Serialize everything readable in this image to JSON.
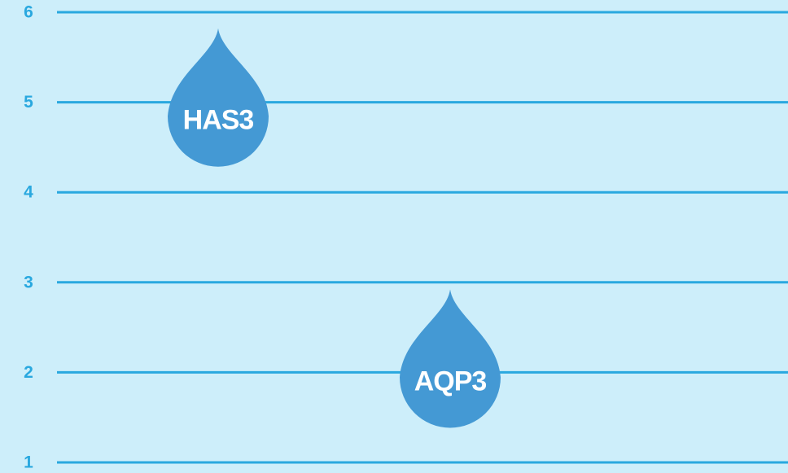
{
  "chart_data": {
    "type": "scatter",
    "categories": [
      "HAS3",
      "AQP3"
    ],
    "values": [
      4.8,
      1.9
    ],
    "color": "#4499d4",
    "ylim": [
      1,
      6
    ],
    "yticks": [
      1,
      2,
      3,
      4,
      5,
      6
    ],
    "grid": true,
    "grid_color": "#29a8df"
  }
}
